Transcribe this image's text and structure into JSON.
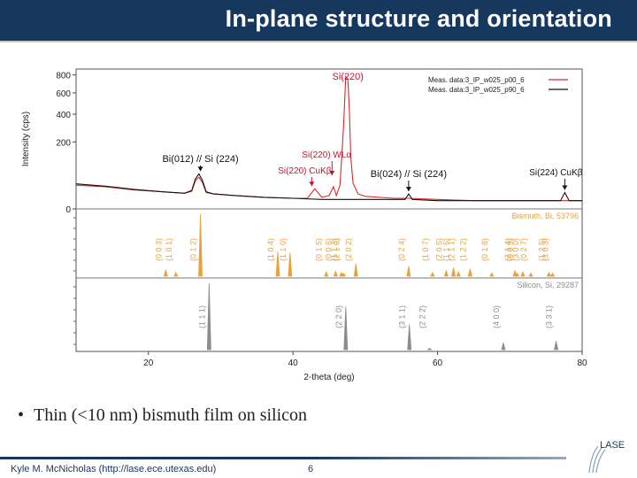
{
  "slide": {
    "title": "In-plane structure and orientation",
    "bullet": "Thin (<10 nm) bismuth film on silicon",
    "footer": "Kyle M. McNicholas (http://lase.ece.utexas.edu)",
    "page_number": "6",
    "logo_text": "LASE"
  },
  "colors": {
    "title_bar": "#16375e",
    "series_red": "#d62b2b",
    "series_black": "#111111",
    "bismuth": "#e8a23a",
    "silicon": "#8c8c8c",
    "annotation_red": "#c8102e"
  },
  "chart_data": {
    "type": "line",
    "xlabel": "2-theta (deg)",
    "ylabel": "Intensity (cps)",
    "xlim": [
      10,
      80
    ],
    "x_ticks": [
      "20",
      "40",
      "60",
      "80"
    ],
    "y_ticks": [
      "800",
      "600",
      "400",
      "200",
      "0"
    ],
    "ylim": [
      0,
      850
    ],
    "y_scale": "sqrt",
    "legend_position": "top-right",
    "series": [
      {
        "name": "Meas. data:3_IP_w025_p00_6",
        "color": "#d62b2b",
        "x": [
          10,
          14,
          18,
          22,
          25,
          26,
          26.5,
          27,
          27.5,
          28,
          29,
          32,
          36,
          40,
          42,
          43,
          44,
          45,
          45.6,
          46,
          46.5,
          47,
          47.3,
          47.6,
          47.8,
          48,
          48.3,
          49,
          50,
          54,
          56,
          60,
          65,
          70,
          74,
          77.5,
          80
        ],
        "y": [
          25,
          22,
          16,
          13,
          11,
          14,
          35,
          45,
          30,
          12,
          10,
          8,
          6,
          5,
          5,
          18,
          6,
          8,
          22,
          8,
          25,
          300,
          780,
          750,
          430,
          120,
          30,
          10,
          7,
          5,
          5,
          4,
          3,
          3,
          3,
          3,
          3
        ]
      },
      {
        "name": "Meas. data:3_IP_w025_p90_6",
        "color": "#111111",
        "x": [
          10,
          14,
          18,
          22,
          25,
          26,
          26.5,
          27,
          27.5,
          28,
          29,
          32,
          36,
          40,
          44,
          47,
          48,
          52,
          55.5,
          56,
          56.5,
          60,
          65,
          70,
          75,
          77,
          77.6,
          78.2,
          80
        ],
        "y": [
          28,
          23,
          17,
          13,
          11,
          15,
          40,
          55,
          35,
          13,
          10,
          8,
          6,
          5,
          4,
          4,
          4,
          4,
          4,
          10,
          4,
          3,
          3,
          3,
          3,
          3,
          12,
          3,
          3
        ]
      }
    ],
    "annotations": [
      {
        "text": "Si(220)",
        "x": 47.6,
        "y": 780,
        "color": "#c8102e"
      },
      {
        "text": "Bi(012) // Si (224)",
        "x": 27.2,
        "y": 55,
        "color": "#111111"
      },
      {
        "text": "Si(220) WLα",
        "x": 45.4,
        "y": 22,
        "color": "#c8102e"
      },
      {
        "text": "Si(220) CuKβ",
        "x": 42.6,
        "y": 18,
        "color": "#c8102e"
      },
      {
        "text": "Bi(024) // Si (224)",
        "x": 56.0,
        "y": 10,
        "color": "#111111"
      },
      {
        "text": "Si(224) CuKβ",
        "x": 77.6,
        "y": 12,
        "color": "#111111"
      }
    ],
    "reference_panels": [
      {
        "name": "Bismuth, Bi, 53796",
        "color": "#e8a23a",
        "peaks": [
          {
            "x": 22.4,
            "h": 0.1,
            "label": "(0 0 3)"
          },
          {
            "x": 23.8,
            "h": 0.06,
            "label": "(1 0 1)"
          },
          {
            "x": 27.2,
            "h": 1.0,
            "label": "(0 1 2)"
          },
          {
            "x": 37.9,
            "h": 0.4,
            "label": "(1 0 4)"
          },
          {
            "x": 39.6,
            "h": 0.38,
            "label": "(1 1 0)"
          },
          {
            "x": 44.6,
            "h": 0.07,
            "label": "(0 1 5)"
          },
          {
            "x": 45.9,
            "h": 0.08,
            "label": "(0 0 6)"
          },
          {
            "x": 46.7,
            "h": 0.06,
            "label": "(1 1 3)"
          },
          {
            "x": 47.0,
            "h": 0.05,
            "label": "(2 1 0)"
          },
          {
            "x": 48.7,
            "h": 0.2,
            "label": "(2 0 2)"
          },
          {
            "x": 56.0,
            "h": 0.16,
            "label": "(0 2 4)"
          },
          {
            "x": 59.3,
            "h": 0.06,
            "label": "(1 0 7)"
          },
          {
            "x": 61.2,
            "h": 0.09,
            "label": "(2 0 5)"
          },
          {
            "x": 62.2,
            "h": 0.14,
            "label": "(1 1 6)"
          },
          {
            "x": 62.9,
            "h": 0.07,
            "label": "(2 1 1)"
          },
          {
            "x": 64.5,
            "h": 0.12,
            "label": "(1 2 2)"
          },
          {
            "x": 67.5,
            "h": 0.05,
            "label": "(0 1 8)"
          },
          {
            "x": 70.7,
            "h": 0.09,
            "label": "(2 1 4)"
          },
          {
            "x": 71.0,
            "h": 0.05,
            "label": "(0 0 9)"
          },
          {
            "x": 71.8,
            "h": 0.07,
            "label": "(3 0 0)"
          },
          {
            "x": 72.9,
            "h": 0.05,
            "label": "(0 2 7)"
          },
          {
            "x": 75.4,
            "h": 0.06,
            "label": "(1 2 5)"
          },
          {
            "x": 75.9,
            "h": 0.05,
            "label": "(3 0 3)"
          }
        ]
      },
      {
        "name": "Silicon, Si, 29287",
        "color": "#8c8c8c",
        "peaks": [
          {
            "x": 28.4,
            "h": 1.0,
            "label": "(1 1 1)"
          },
          {
            "x": 47.3,
            "h": 0.65,
            "label": "(2 2 0)"
          },
          {
            "x": 56.1,
            "h": 0.38,
            "label": "(3 1 1)"
          },
          {
            "x": 58.9,
            "h": 0.02,
            "label": "(2 2 2)"
          },
          {
            "x": 69.1,
            "h": 0.1,
            "label": "(4 0 0)"
          },
          {
            "x": 76.4,
            "h": 0.13,
            "label": "(3 3 1)"
          }
        ]
      }
    ]
  }
}
